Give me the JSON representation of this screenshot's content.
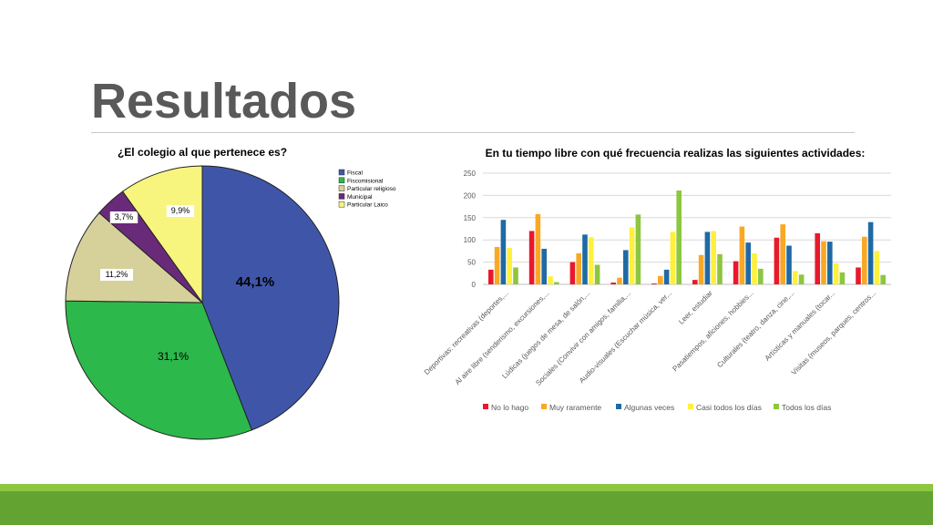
{
  "slide": {
    "title": "Resultados"
  },
  "chart_data": [
    {
      "type": "pie",
      "title": "¿El colegio al que pertenece es?",
      "labels": [
        "Fiscal",
        "Fiscomisional",
        "Particular religioso",
        "Municipal",
        "Particular Laico"
      ],
      "values": [
        44.1,
        31.1,
        11.2,
        3.7,
        9.9
      ],
      "value_labels": [
        "44,1%",
        "31,1%",
        "11,2%",
        "3,7%",
        "9,9%"
      ],
      "colors": [
        "#3f56a8",
        "#2db84b",
        "#d6d19a",
        "#6a2a7a",
        "#f7f57e"
      ],
      "legend": "top-right"
    },
    {
      "type": "bar",
      "title": "En tu tiempo libre con qué frecuencia realizas las siguientes actividades:",
      "categories": [
        "Deportivas: recreativas (deportes,...",
        "Al aire libre (senderismo, excursiones,...",
        "Lúdicas (juegos de mesa, de salón,...",
        "Sociales (Convivir con amigos, familia,...",
        "Audio-visuales (Escuchar música, ver...",
        "Leer, estudiar",
        "Pasatiempos, aficiones, hobbies...",
        "Culturales (teatro, danza, cine,...",
        "Artísticas y manuales (tocar...",
        "Visitas (museos, parques, centros..."
      ],
      "series": [
        {
          "name": "No lo hago",
          "color": "#e8192c",
          "values": [
            33,
            120,
            50,
            4,
            2,
            10,
            52,
            105,
            115,
            38
          ]
        },
        {
          "name": "Muy raramente",
          "color": "#f9a825",
          "values": [
            84,
            158,
            70,
            15,
            19,
            66,
            130,
            135,
            97,
            107
          ]
        },
        {
          "name": "Algunas veces",
          "color": "#1f6aa5",
          "values": [
            145,
            80,
            112,
            77,
            33,
            118,
            94,
            87,
            96,
            140
          ]
        },
        {
          "name": "Casi todos los días",
          "color": "#fff03c",
          "values": [
            82,
            18,
            106,
            128,
            118,
            120,
            70,
            30,
            47,
            75
          ]
        },
        {
          "name": "Todos los días",
          "color": "#8dc63f",
          "values": [
            38,
            5,
            44,
            157,
            211,
            68,
            35,
            22,
            27,
            21
          ]
        }
      ],
      "yticks": [
        "250",
        "200",
        "150",
        "100",
        "50",
        "0"
      ],
      "ylim": [
        0,
        250
      ],
      "grid": true,
      "legend": "bottom"
    }
  ]
}
